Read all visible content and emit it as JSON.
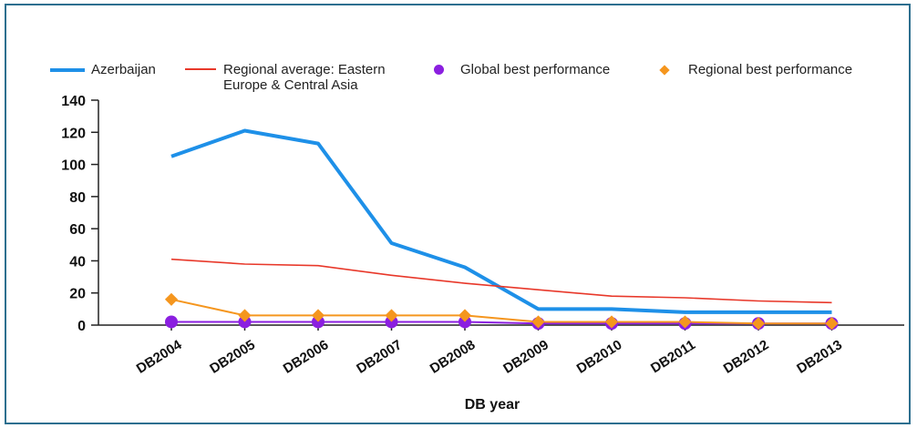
{
  "chart_data": {
    "type": "line",
    "categories": [
      "DB2004",
      "DB2005",
      "DB2006",
      "DB2007",
      "DB2008",
      "DB2009",
      "DB2010",
      "DB2011",
      "DB2012",
      "DB2013"
    ],
    "series": [
      {
        "name": "Azerbaijan",
        "style": "line",
        "color": "#1e90e8",
        "values": [
          105,
          121,
          113,
          51,
          36,
          10,
          10,
          8,
          8,
          8
        ]
      },
      {
        "name": "Regional average: Eastern Europe & Central Asia",
        "style": "line",
        "color": "#e8382a",
        "values": [
          41,
          38,
          37,
          31,
          26,
          22,
          18,
          17,
          15,
          14
        ]
      },
      {
        "name": "Global best performance",
        "style": "markers-dot",
        "color": "#8b1fe0",
        "values": [
          2,
          2,
          2,
          2,
          2,
          1,
          1,
          1,
          1,
          1
        ]
      },
      {
        "name": "Regional best performance",
        "style": "markers-diamond",
        "color": "#f5961e",
        "values": [
          16,
          6,
          6,
          6,
          6,
          2,
          2,
          2,
          1,
          1
        ]
      }
    ],
    "title": "",
    "xlabel": "DB year",
    "ylabel": "",
    "ylim": [
      0,
      140
    ],
    "yticks": [
      0,
      20,
      40,
      60,
      80,
      100,
      120,
      140
    ],
    "grid": false,
    "legend_position": "top"
  }
}
